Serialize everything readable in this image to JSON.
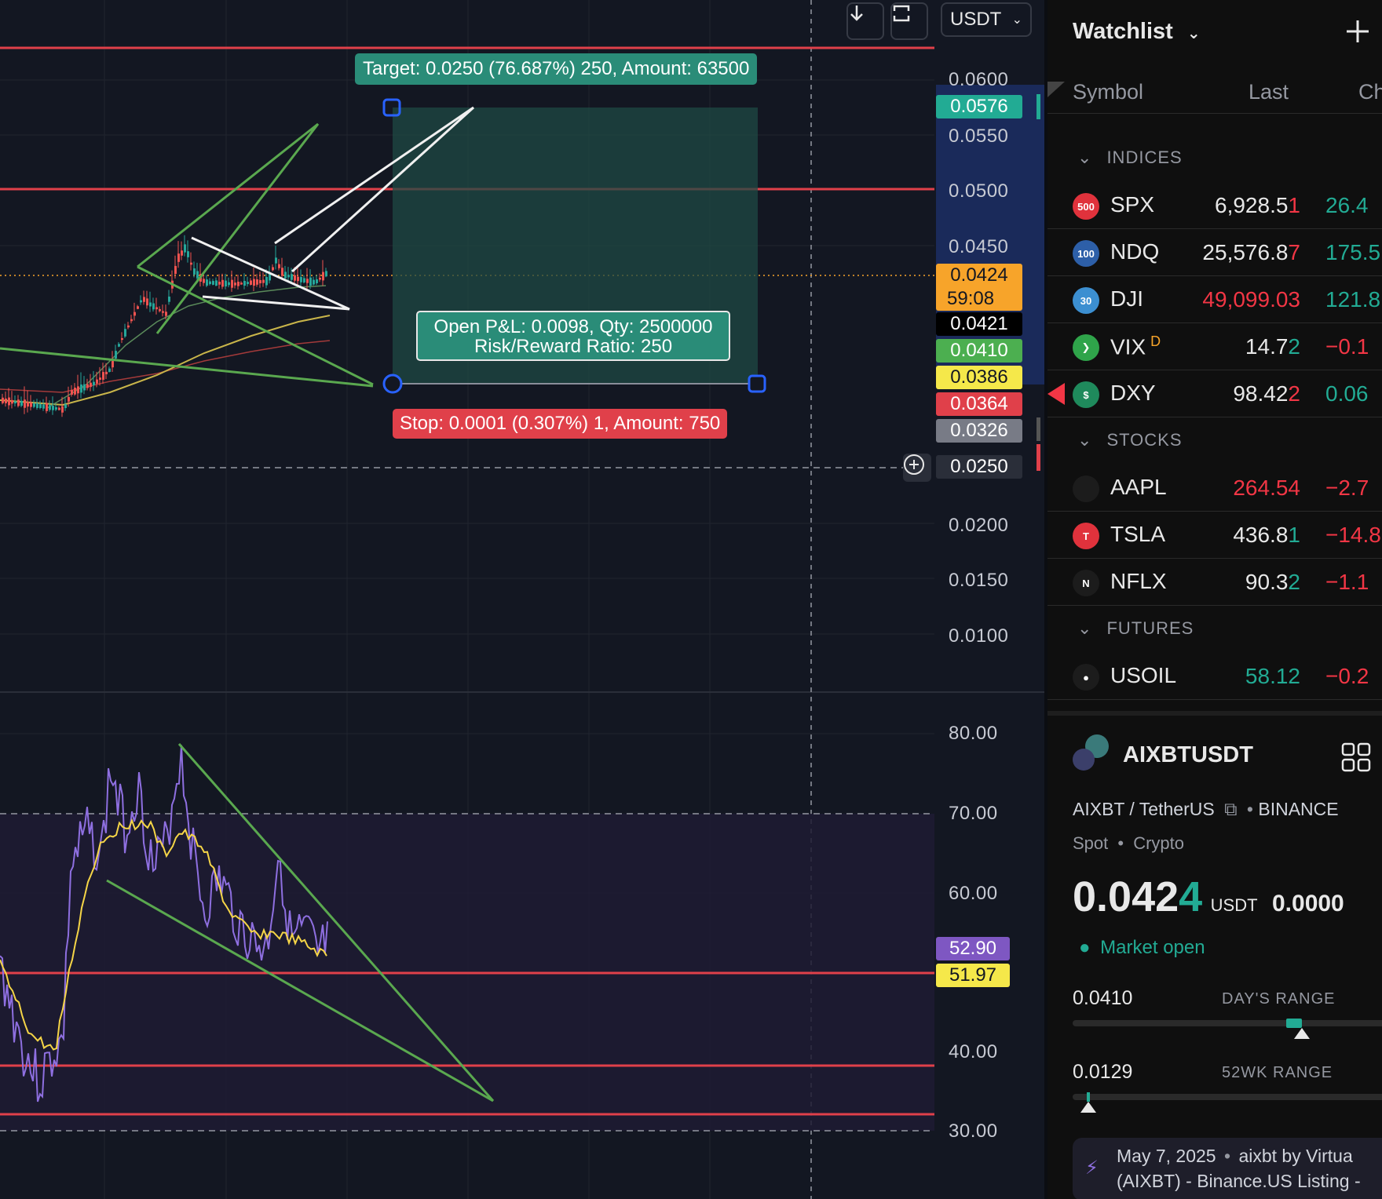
{
  "toolbar": {
    "currency": "USDT"
  },
  "price_axis": {
    "labels": [
      "0.0600",
      "0.0550",
      "0.0500",
      "0.0450",
      "0.0250",
      "0.0200",
      "0.0150",
      "0.0100"
    ],
    "pills": [
      {
        "text": "0.0576",
        "bg": "#22ab94",
        "fg": "#ffffff"
      },
      {
        "text": "0.0424",
        "bg": "#f7a42a",
        "fg": "#131722"
      },
      {
        "text": "59:08",
        "bg": "#f7a42a",
        "fg": "#131722"
      },
      {
        "text": "0.0421",
        "bg": "#000000",
        "fg": "#ffffff"
      },
      {
        "text": "0.0410",
        "bg": "#4caf50",
        "fg": "#ffffff"
      },
      {
        "text": "0.0386",
        "bg": "#f5e84a",
        "fg": "#131722"
      },
      {
        "text": "0.0364",
        "bg": "#e0404a",
        "fg": "#ffffff"
      },
      {
        "text": "0.0326",
        "bg": "#787b86",
        "fg": "#ffffff"
      },
      {
        "text": "0.0250",
        "bg": "#2a2e39",
        "fg": "#ffffff"
      }
    ]
  },
  "rsi_axis": {
    "labels": [
      "80.00",
      "70.00",
      "60.00",
      "40.00",
      "30.00"
    ],
    "pills": [
      {
        "text": "52.90",
        "bg": "#7e57c2",
        "fg": "#ffffff"
      },
      {
        "text": "51.97",
        "bg": "#f5e84a",
        "fg": "#131722"
      }
    ]
  },
  "position": {
    "target_label": "Target: 0.0250 (76.687%) 250, Amount: 63500",
    "pnl_line1": "Open P&L: 0.0098, Qty: 2500000",
    "pnl_line2": "Risk/Reward Ratio: 250",
    "stop_label": "Stop: 0.0001 (0.307%) 1, Amount: 750"
  },
  "watchlist": {
    "title": "Watchlist",
    "columns": {
      "symbol": "Symbol",
      "last": "Last",
      "change": "Ch"
    },
    "sections": [
      {
        "name": "INDICES",
        "rows": [
          {
            "icon": "500",
            "icon_bg": "#e0323c",
            "symbol": "SPX",
            "last_main": "6,928.5",
            "last_tail": "1",
            "tail_color": "red",
            "change": "26.4",
            "change_color": "green",
            "flag": false
          },
          {
            "icon": "100",
            "icon_bg": "#2d5fa8",
            "symbol": "NDQ",
            "last_main": "25,576.8",
            "last_tail": "7",
            "tail_color": "red",
            "change": "175.5",
            "change_color": "green",
            "flag": false
          },
          {
            "icon": "30",
            "icon_bg": "#3c8fd1",
            "symbol": "DJI",
            "last_main": "49,099.0",
            "last_tail": "3",
            "tail_color": "red",
            "change": "121.8",
            "change_color": "green",
            "flag": false,
            "main_color": "red"
          },
          {
            "icon": "❯",
            "icon_bg": "#2fa44a",
            "symbol": "VIX",
            "sup": "D",
            "last_main": "14.7",
            "last_tail": "2",
            "tail_color": "green",
            "change": "−0.1",
            "change_color": "red",
            "flag": false
          },
          {
            "icon": "$",
            "icon_bg": "#1f8a5c",
            "symbol": "DXY",
            "last_main": "98.42",
            "last_tail": "2",
            "tail_color": "red",
            "change": "0.06",
            "change_color": "green",
            "flag": true
          }
        ]
      },
      {
        "name": "STOCKS",
        "rows": [
          {
            "icon": "",
            "icon_bg": "#1c1c1c",
            "symbol": "AAPL",
            "last_main": "264.54",
            "last_tail": "",
            "tail_color": "red",
            "change": "−2.7",
            "change_color": "red",
            "flag": false,
            "main_color": "red"
          },
          {
            "icon": "T",
            "icon_bg": "#e0323c",
            "symbol": "TSLA",
            "last_main": "436.8",
            "last_tail": "1",
            "tail_color": "green",
            "change": "−14.8",
            "change_color": "red",
            "flag": false
          },
          {
            "icon": "N",
            "icon_bg": "#1c1c1c",
            "symbol": "NFLX",
            "last_main": "90.3",
            "last_tail": "2",
            "tail_color": "green",
            "change": "−1.1",
            "change_color": "red",
            "flag": false
          }
        ]
      },
      {
        "name": "FUTURES",
        "rows": [
          {
            "icon": "●",
            "icon_bg": "#1c1c1c",
            "symbol": "USOIL",
            "last_main": "58.12",
            "last_tail": "",
            "tail_color": "green",
            "change": "−0.2",
            "change_color": "red",
            "flag": false,
            "main_color": "green"
          }
        ]
      }
    ]
  },
  "details": {
    "symbol": "AIXBTUSDT",
    "pair": "AIXBT / TetherUS",
    "exchange": "BINANCE",
    "market_type": "Spot",
    "asset_class": "Crypto",
    "price_main": "0.042",
    "price_tail": "4",
    "price_currency": "USDT",
    "price_change": "0.0000",
    "status": "Market open",
    "day_low": "0.0410",
    "day_range_label": "DAY'S RANGE",
    "wk_low": "0.0129",
    "wk_range_label": "52WK RANGE",
    "news_date": "May 7, 2025",
    "news_source": "aixbt by Virtua",
    "news_line2": "(AIXBT) - Binance.US Listing -"
  }
}
